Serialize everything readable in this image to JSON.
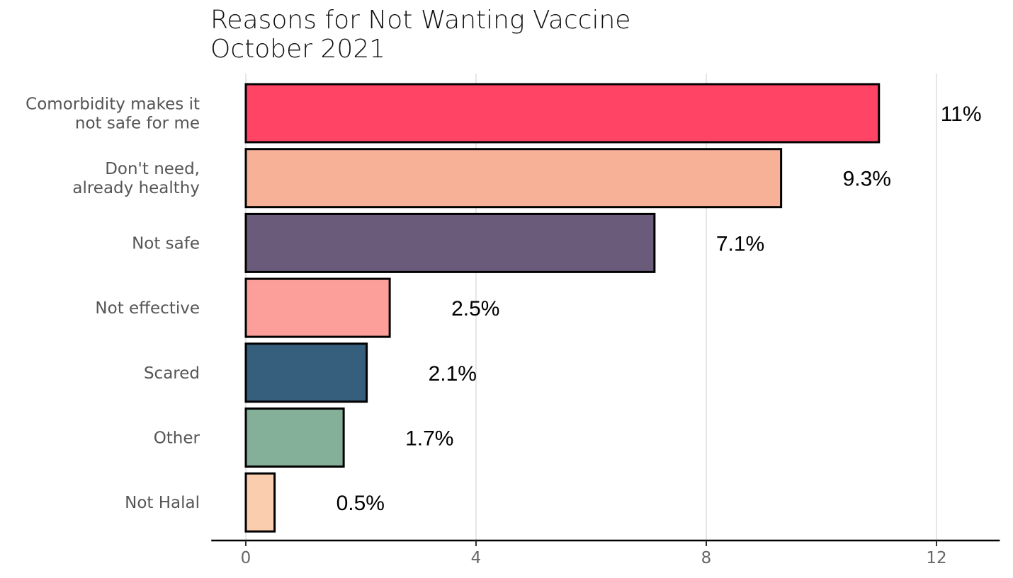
{
  "chart_data": {
    "type": "bar",
    "orientation": "horizontal",
    "title": "Reasons for Not Wanting Vaccine",
    "subtitle": "October 2021",
    "categories": [
      [
        "Comorbidity makes it",
        "not safe for me"
      ],
      [
        "Don't need,",
        "already healthy"
      ],
      [
        "Not safe"
      ],
      [
        "Not effective"
      ],
      [
        "Scared"
      ],
      [
        "Other"
      ],
      [
        "Not Halal"
      ]
    ],
    "values": [
      11.0,
      9.3,
      7.1,
      2.5,
      2.1,
      1.7,
      0.5
    ],
    "data_labels": [
      "11%",
      "9.3%",
      "7.1%",
      "2.5%",
      "2.1%",
      "1.7%",
      "0.5%"
    ],
    "colors": [
      "#FF4465",
      "#F7B196",
      "#6A5B7B",
      "#FC9E9A",
      "#365E7D",
      "#84AF99",
      "#FACDAF"
    ],
    "x_ticks": [
      0,
      4,
      8,
      12
    ],
    "xlim": [
      -0.6,
      13.1
    ],
    "grid": "vertical",
    "legend": "none"
  }
}
